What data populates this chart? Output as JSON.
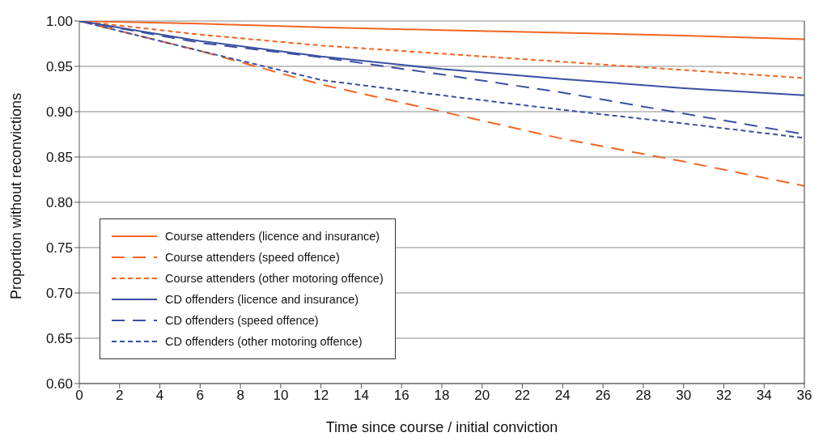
{
  "chart_data": {
    "type": "line",
    "xlabel": "Time since course / initial conviction",
    "ylabel": "Proportion without reconvictions",
    "x": [
      0,
      6,
      12,
      18,
      24,
      30,
      36
    ],
    "series": [
      {
        "name": "Course attenders (licence and insurance)",
        "color": "#f26522",
        "line_style": "solid",
        "values": [
          1.0,
          0.997,
          0.993,
          0.99,
          0.987,
          0.984,
          0.98
        ]
      },
      {
        "name": "Course attenders (speed offence)",
        "color": "#f26522",
        "line_style": "dashed",
        "values": [
          1.0,
          0.967,
          0.93,
          0.9,
          0.87,
          0.845,
          0.818
        ]
      },
      {
        "name": "Course attenders (other motoring offence)",
        "color": "#f26522",
        "line_style": "dotted",
        "values": [
          1.0,
          0.985,
          0.973,
          0.964,
          0.955,
          0.946,
          0.937
        ]
      },
      {
        "name": "CD offenders (licence and insurance)",
        "color": "#3a4fa0",
        "line_style": "solid",
        "values": [
          1.0,
          0.978,
          0.961,
          0.947,
          0.936,
          0.926,
          0.918
        ]
      },
      {
        "name": "CD offenders (speed offence)",
        "color": "#3a4fa0",
        "line_style": "dashed",
        "values": [
          1.0,
          0.976,
          0.96,
          0.941,
          0.921,
          0.898,
          0.875
        ]
      },
      {
        "name": "CD offenders (other motoring offence)",
        "color": "#3a4fa0",
        "line_style": "dotted",
        "values": [
          1.0,
          0.967,
          0.935,
          0.918,
          0.902,
          0.887,
          0.871
        ]
      }
    ],
    "xlim": [
      0,
      36
    ],
    "xticks": [
      0,
      2,
      4,
      6,
      8,
      10,
      12,
      14,
      16,
      18,
      20,
      22,
      24,
      26,
      28,
      30,
      32,
      34,
      36
    ],
    "ylim": [
      0.6,
      1.0
    ],
    "yticks": [
      {
        "value": 0.6,
        "label": "0.60"
      },
      {
        "value": 0.65,
        "label": "0.65"
      },
      {
        "value": 0.7,
        "label": "0.70"
      },
      {
        "value": 0.75,
        "label": "0.75"
      },
      {
        "value": 0.8,
        "label": "0.80"
      },
      {
        "value": 0.85,
        "label": "0.85"
      },
      {
        "value": 0.9,
        "label": "0.90"
      },
      {
        "value": 0.95,
        "label": "0.95"
      },
      {
        "value": 1.0,
        "label": "1.00"
      }
    ],
    "grid": "y",
    "legend": "bottom left",
    "marker": "none"
  }
}
